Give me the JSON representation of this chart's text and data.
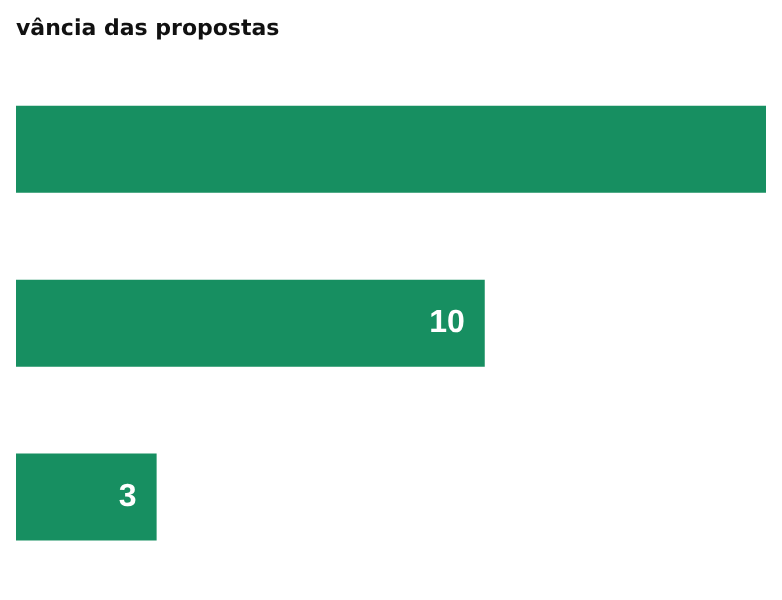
{
  "chart_data": {
    "type": "bar",
    "orientation": "horizontal",
    "title": "vância das propostas",
    "categories": [
      null,
      null,
      null
    ],
    "values": [
      16,
      10,
      3
    ],
    "value_labels": [
      null,
      "10",
      "3"
    ],
    "color": "#178f61",
    "grid": false,
    "legend": false
  }
}
